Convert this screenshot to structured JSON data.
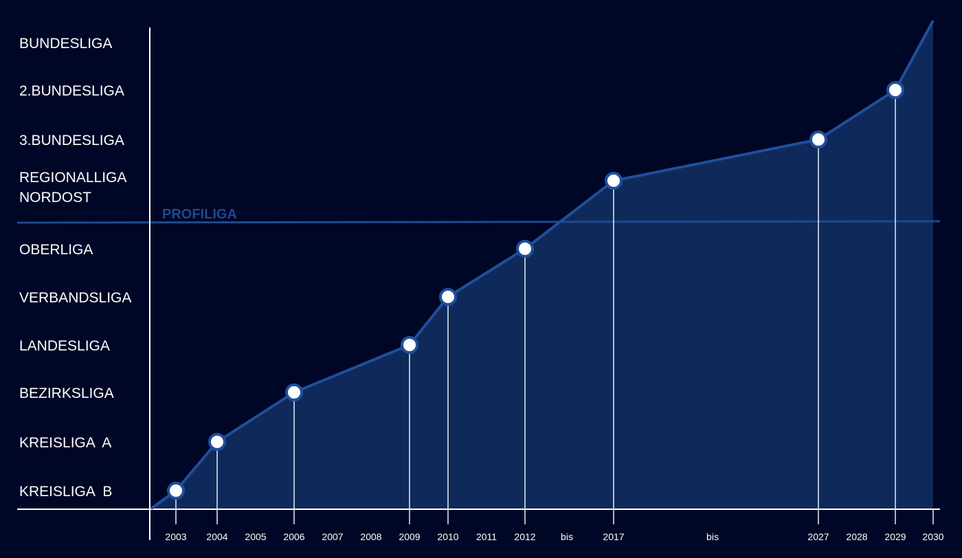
{
  "chart_data": {
    "type": "area",
    "title": "",
    "profiliga_label": "PROFILIGA",
    "leagues": [
      "KREISLIGA  B",
      "KREISLIGA  A",
      "BEZIRKSLIGA",
      "LANDESLIGA",
      "VERBANDSLIGA",
      "OBERLIGA",
      "REGIONALLIGA NORDOST",
      "3.BUNDESLIGA",
      "2.BUNDESLIGA",
      "BUNDESLIGA"
    ],
    "x_ticks": [
      "2003",
      "2004",
      "2005",
      "2006",
      "2007",
      "2008",
      "2009",
      "2010",
      "2011",
      "2012",
      "bis",
      "2017",
      "bis",
      "2027",
      "2028",
      "2029",
      "2030"
    ],
    "points": [
      {
        "year": "2003",
        "league_index": 0
      },
      {
        "year": "2004",
        "league_index": 1
      },
      {
        "year": "2006",
        "league_index": 2
      },
      {
        "year": "2009",
        "league_index": 3
      },
      {
        "year": "2010",
        "league_index": 4
      },
      {
        "year": "2012",
        "league_index": 5
      },
      {
        "year": "2017",
        "league_index": 6
      },
      {
        "year": "2027",
        "league_index": 7
      },
      {
        "year": "2029",
        "league_index": 8
      }
    ],
    "end": {
      "year": "2030",
      "league_index": 9.5
    },
    "colors": {
      "background": "#000625",
      "area": "#0f2a5a",
      "line": "#1f4f9c",
      "marker_fill": "#ffffff",
      "axis": "#ffffff",
      "profiliga": "#1d4a8f"
    }
  }
}
